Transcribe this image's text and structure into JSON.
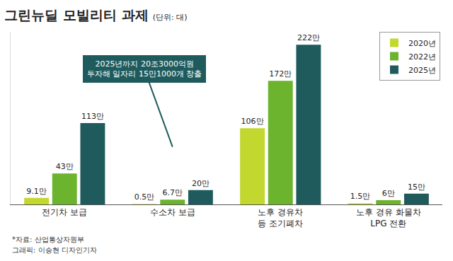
{
  "chart_data": {
    "type": "bar",
    "title": "그린뉴딜 모빌리티 과제",
    "subtitle": "(단위: 대)",
    "categories": [
      "전기차 보급",
      "수소차 보급",
      "노후 경유차 등 조기폐차",
      "노후 경유 화물차 LPG 전환"
    ],
    "series": [
      {
        "name": "2020년",
        "color": "#c3d82f",
        "values": [
          91000,
          5000,
          1060000,
          15000
        ],
        "value_labels": [
          "9.1만",
          "0.5만",
          "106만",
          "1.5만"
        ]
      },
      {
        "name": "2022년",
        "color": "#6cb32e",
        "values": [
          430000,
          67000,
          1720000,
          60000
        ],
        "value_labels": [
          "43만",
          "6.7만",
          "172만",
          "6만"
        ]
      },
      {
        "name": "2025년",
        "color": "#1f5b5c",
        "values": [
          1130000,
          200000,
          2220000,
          150000
        ],
        "value_labels": [
          "113만",
          "20만",
          "222만",
          "15만"
        ]
      }
    ],
    "ylim": [
      0,
      2400000
    ],
    "tick_labels": "x",
    "grid": false,
    "legend": "top right",
    "data_labels": true,
    "annotations": [
      "2025년까지 20조3000억원 투자해 일자리 15만1000개 창출"
    ],
    "source": "*자료: 산업통상자원부",
    "credit": "그래픽: 이승현 디자인기자"
  }
}
